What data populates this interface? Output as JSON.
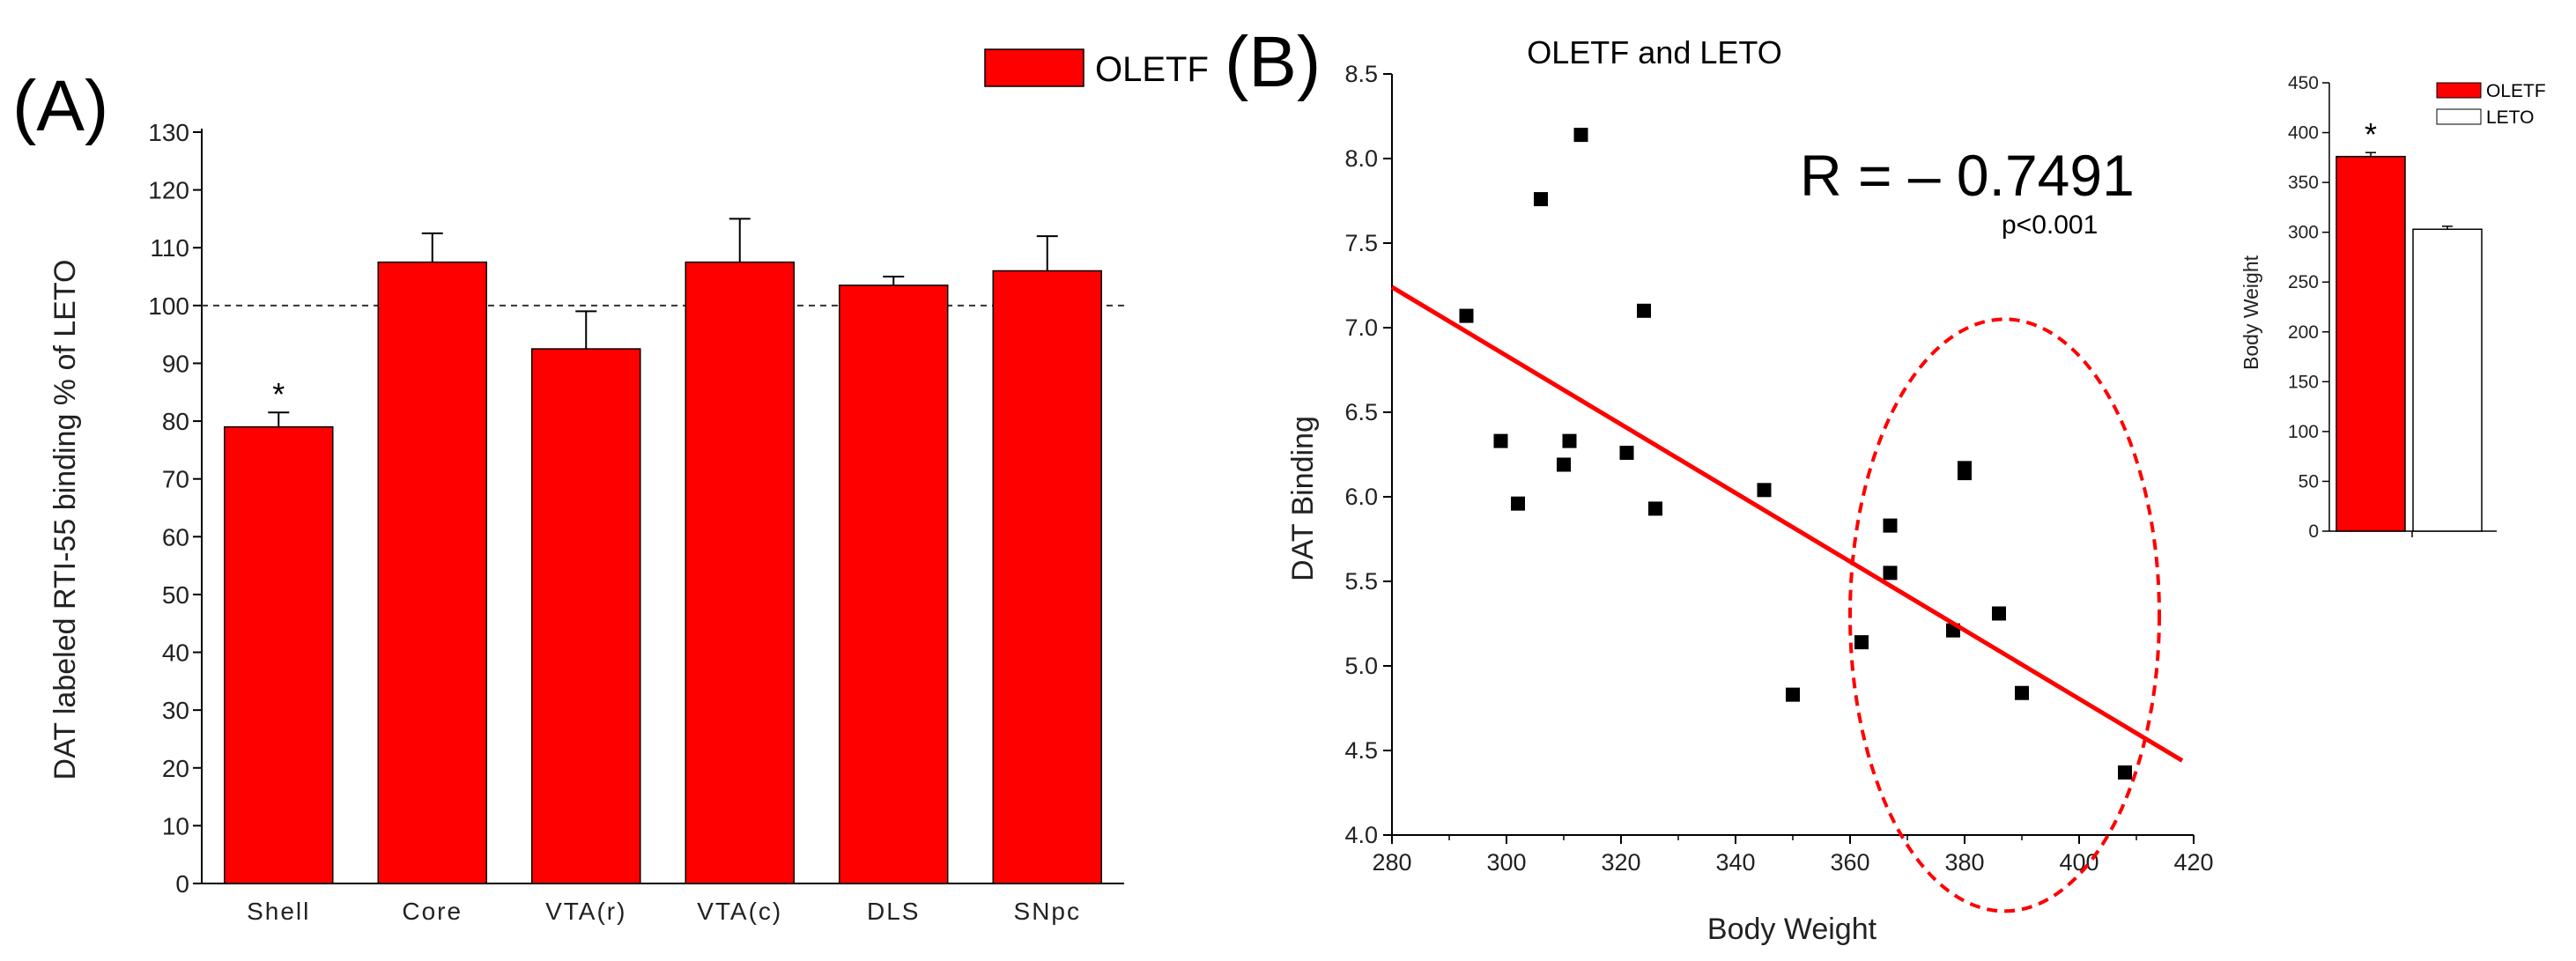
{
  "panel_a": {
    "label": "(A)",
    "legend": "OLETF",
    "colors": {
      "bar": "#ff0000",
      "edge": "#000000",
      "reference": "#333333"
    },
    "chart_data": {
      "type": "bar",
      "categories": [
        "Shell",
        "Core",
        "VTA(r)",
        "VTA(c)",
        "DLS",
        "SNpc"
      ],
      "values": [
        79,
        107.5,
        92.5,
        107.5,
        103.5,
        106
      ],
      "errors": [
        2.5,
        5,
        6.5,
        7.5,
        1.5,
        6
      ],
      "significance": [
        "*",
        "",
        "",
        "",
        "",
        ""
      ],
      "reference_line": 100,
      "ylabel": "DAT labeled RTI-55 binding % of LETO",
      "ylim": [
        0,
        130
      ],
      "yticks": [
        "0",
        "10",
        "20",
        "30",
        "40",
        "50",
        "60",
        "70",
        "80",
        "90",
        "100",
        "110",
        "120",
        "130"
      ]
    }
  },
  "panel_b": {
    "label": "(B)",
    "title": "OLETF and LETO",
    "r_text": "R = – 0.7491",
    "p_text": "p<0.001",
    "colors": {
      "points": "#000000",
      "fit": "#ff0000",
      "circle": "#ff0000"
    },
    "chart_data": {
      "type": "scatter",
      "xlabel": "Body Weight",
      "ylabel": "DAT Binding",
      "xlim": [
        280,
        420
      ],
      "ylim": [
        4.0,
        8.5
      ],
      "xticks": [
        "280",
        "300",
        "320",
        "340",
        "360",
        "380",
        "400",
        "420"
      ],
      "yticks": [
        "4.0",
        "4.5",
        "5.0",
        "5.5",
        "6.0",
        "6.5",
        "7.0",
        "7.5",
        "8.0",
        "8.5"
      ],
      "points": [
        [
          293,
          7.07
        ],
        [
          299,
          6.33
        ],
        [
          302,
          5.96
        ],
        [
          306,
          7.76
        ],
        [
          310,
          6.19
        ],
        [
          311,
          6.33
        ],
        [
          313,
          8.14
        ],
        [
          321,
          6.26
        ],
        [
          324,
          7.1
        ],
        [
          326,
          5.93
        ],
        [
          345,
          6.04
        ],
        [
          350,
          4.83
        ],
        [
          362,
          5.14
        ],
        [
          367,
          5.83
        ],
        [
          367,
          5.55
        ],
        [
          378,
          5.21
        ],
        [
          380,
          6.14
        ],
        [
          380,
          6.17
        ],
        [
          386,
          5.31
        ],
        [
          390,
          4.84
        ],
        [
          408,
          4.37
        ]
      ],
      "fit_line": {
        "x": [
          280,
          418
        ],
        "y": [
          7.24,
          4.44
        ]
      },
      "circle": {
        "center": [
          387,
          5.3
        ],
        "radius_x": 27,
        "radius_y": 1.75
      }
    },
    "inset": {
      "chart_data": {
        "type": "bar",
        "categories": [
          "OLETF",
          "LETO"
        ],
        "values": [
          376,
          303
        ],
        "errors": [
          4,
          3
        ],
        "significance": [
          "*",
          ""
        ],
        "ylabel": "Body Weight",
        "ylim": [
          0,
          450
        ],
        "yticks": [
          "0",
          "50",
          "100",
          "150",
          "200",
          "250",
          "300",
          "350",
          "400",
          "450"
        ],
        "legend": [
          "OLETF",
          "LETO"
        ],
        "colors": [
          "#ff0000",
          "#ffffff"
        ]
      }
    }
  }
}
